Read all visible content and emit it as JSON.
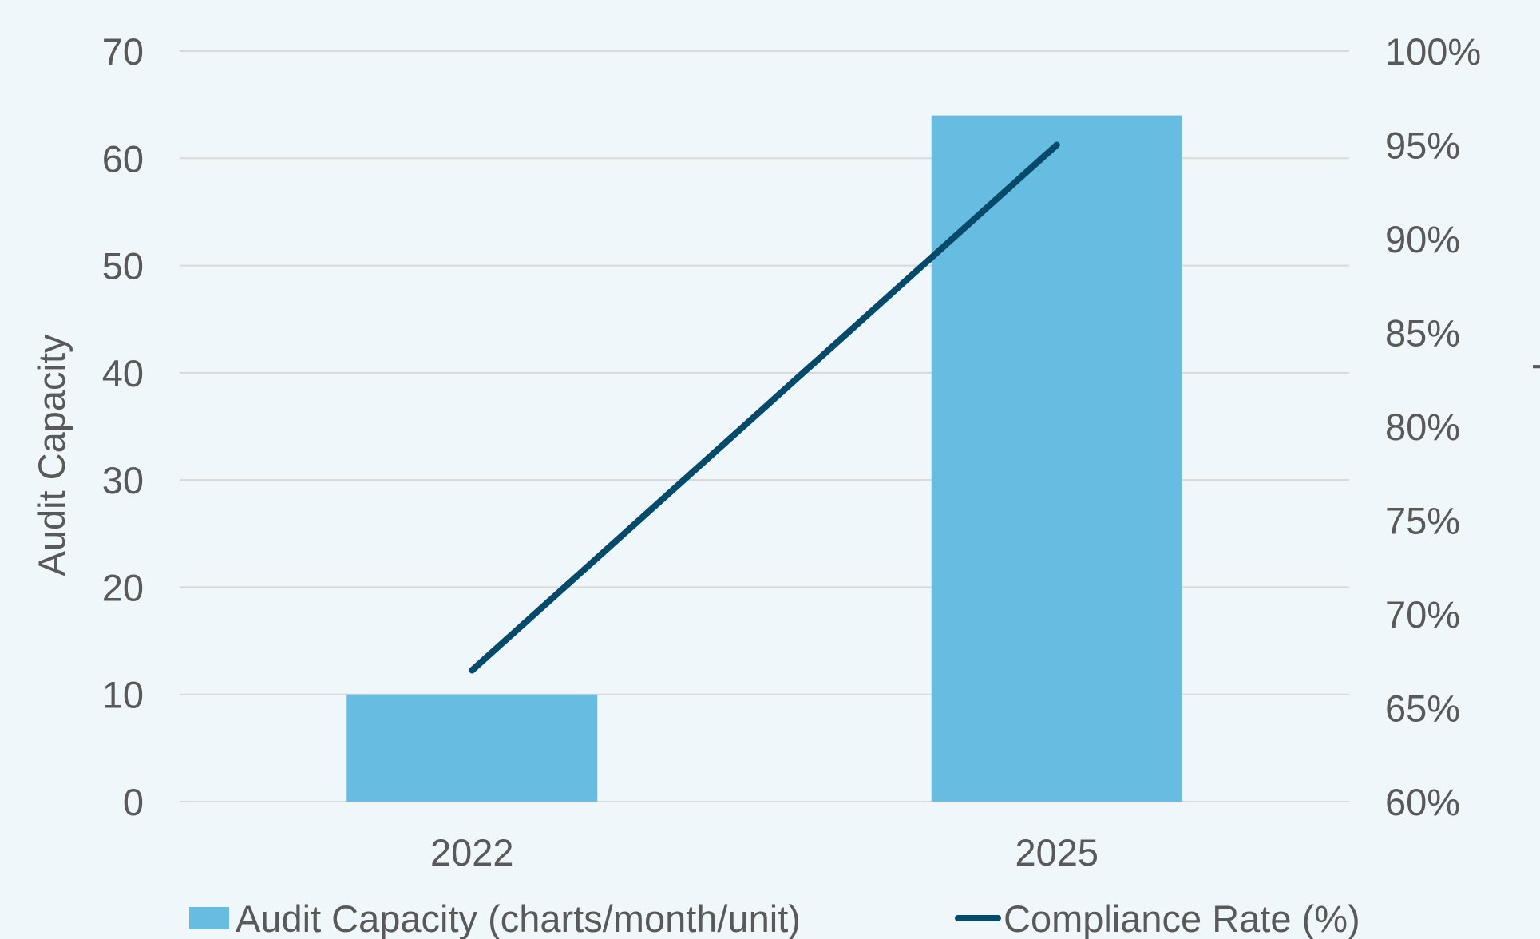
{
  "chart_data": {
    "type": "bar",
    "categories": [
      "2022",
      "2025"
    ],
    "series": [
      {
        "name": "Audit Capacity (charts/month/unit)",
        "type": "bar",
        "axis": "left",
        "color": "#67BCE2",
        "values": [
          10,
          64
        ]
      },
      {
        "name": "Compliance Rate (%)",
        "type": "line",
        "axis": "right",
        "color": "#064A6B",
        "values": [
          67,
          95
        ]
      }
    ],
    "ylabel": "Audit Capacity",
    "ylim": [
      0,
      70
    ],
    "yticks": [
      "0",
      "10",
      "20",
      "30",
      "40",
      "50",
      "60",
      "70"
    ],
    "y2label": "Compliance Rate",
    "y2lim": [
      60,
      100
    ],
    "y2ticks": [
      "60%",
      "65%",
      "70%",
      "75%",
      "80%",
      "85%",
      "90%",
      "95%",
      "100%"
    ],
    "grid": true,
    "legend_position": "bottom",
    "colors": {
      "background": "#F0F7FB",
      "gridline": "#D9D9D9",
      "text": "#595959"
    }
  }
}
